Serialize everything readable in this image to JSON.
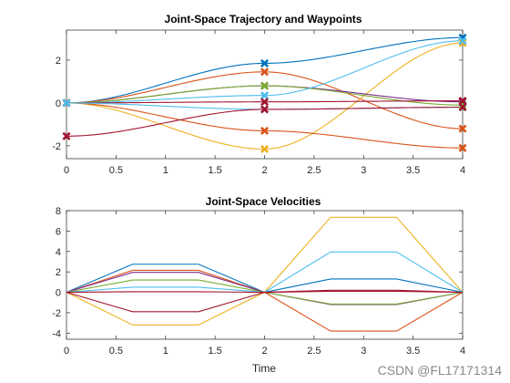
{
  "watermark": "CSDN @FL17171314",
  "chart_data": [
    {
      "type": "line",
      "title": "Joint-Space Trajectory and Waypoints",
      "xlabel": "",
      "ylabel": "",
      "xlim": [
        0,
        4
      ],
      "ylim": [
        -2.6,
        3.4
      ],
      "xticks": [
        "0",
        "0.5",
        "1",
        "1.5",
        "2",
        "2.5",
        "3",
        "3.5",
        "4"
      ],
      "yticks": [
        "-2",
        "0",
        "2"
      ],
      "ytick_values": [
        -2,
        0,
        2
      ],
      "grid": false,
      "waypoint_times": [
        0,
        2,
        4
      ],
      "series": [
        {
          "color": "#0072BD",
          "waypoints": [
            0,
            1.85,
            3.05
          ]
        },
        {
          "color": "#D95319",
          "waypoints": [
            0,
            1.45,
            -1.2
          ]
        },
        {
          "color": "#EDB120",
          "waypoints": [
            0,
            -2.15,
            2.8
          ]
        },
        {
          "color": "#7E2F8E",
          "waypoints": [
            0,
            0.8,
            0.05
          ]
        },
        {
          "color": "#77AC30",
          "waypoints": [
            0,
            0.8,
            -0.1
          ]
        },
        {
          "color": "#4DBEEE",
          "waypoints": [
            0,
            0.35,
            2.9
          ]
        },
        {
          "color": "#A2142F",
          "waypoints": [
            0,
            0.05,
            0.1
          ]
        },
        {
          "color": "#D95319",
          "waypoints": [
            0,
            -1.3,
            -2.1
          ]
        },
        {
          "color": "#4DBEEE",
          "waypoints": [
            0,
            -0.3,
            -0.2
          ]
        },
        {
          "color": "#A2142F",
          "waypoints": [
            -1.55,
            -0.3,
            -0.2
          ]
        }
      ]
    },
    {
      "type": "line",
      "title": "Joint-Space Velocities",
      "xlabel": "Time",
      "ylabel": "",
      "xlim": [
        0,
        4
      ],
      "ylim": [
        -4.6,
        8
      ],
      "xticks": [
        "0",
        "0.5",
        "1",
        "1.5",
        "2",
        "2.5",
        "3",
        "3.5",
        "4"
      ],
      "yticks": [
        "-4",
        "-2",
        "0",
        "2",
        "4",
        "6",
        "8"
      ],
      "ytick_values": [
        -4,
        -2,
        0,
        2,
        4,
        6,
        8
      ],
      "grid": false,
      "profile_times": [
        0,
        0.667,
        1.333,
        2,
        2.667,
        3.333,
        4
      ],
      "series": [
        {
          "color": "#0072BD",
          "plateaus": [
            2.75,
            1.3
          ]
        },
        {
          "color": "#D95319",
          "plateaus": [
            2.15,
            -3.8
          ]
        },
        {
          "color": "#EDB120",
          "plateaus": [
            -3.2,
            7.35
          ]
        },
        {
          "color": "#7E2F8E",
          "plateaus": [
            1.95,
            -1.2
          ]
        },
        {
          "color": "#77AC30",
          "plateaus": [
            1.2,
            -1.15
          ]
        },
        {
          "color": "#4DBEEE",
          "plateaus": [
            0.5,
            3.95
          ]
        },
        {
          "color": "#A2142F",
          "plateaus": [
            0.05,
            0.1
          ]
        },
        {
          "color": "#A2142F",
          "plateaus": [
            -1.9,
            0.2
          ]
        }
      ]
    }
  ]
}
